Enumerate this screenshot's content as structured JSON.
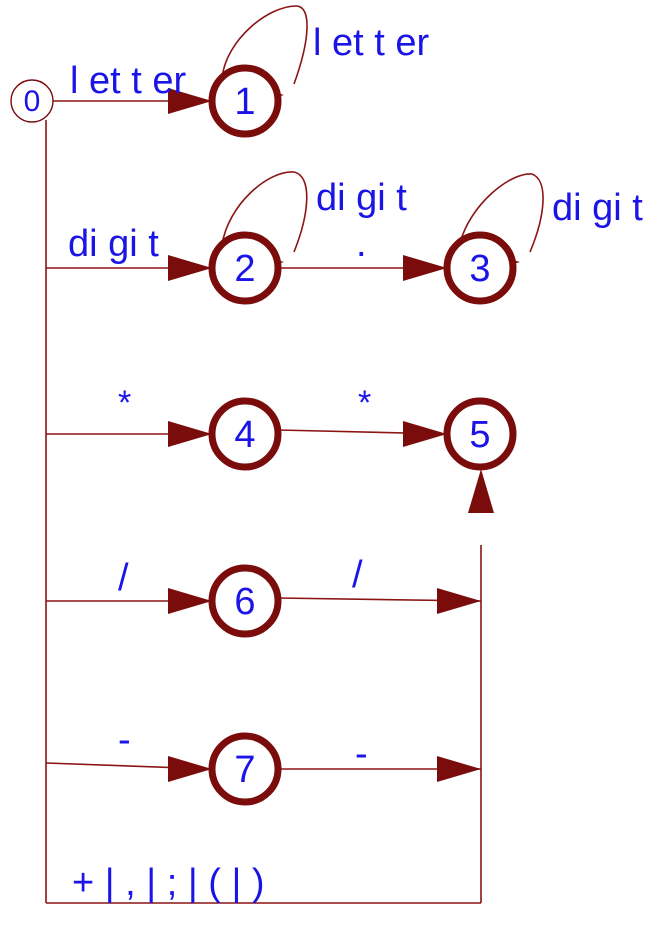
{
  "colors": {
    "edge": "#8b1414",
    "node": "#7a0c0c",
    "text": "#1a14e6"
  },
  "states": [
    {
      "id": "s0",
      "label": "0",
      "final": false
    },
    {
      "id": "s1",
      "label": "1",
      "final": true
    },
    {
      "id": "s2",
      "label": "2",
      "final": true
    },
    {
      "id": "s3",
      "label": "3",
      "final": true
    },
    {
      "id": "s4",
      "label": "4",
      "final": true
    },
    {
      "id": "s5",
      "label": "5",
      "final": true
    },
    {
      "id": "s6",
      "label": "6",
      "final": true
    },
    {
      "id": "s7",
      "label": "7",
      "final": true
    }
  ],
  "transitions": [
    {
      "from": "0",
      "to": "1",
      "label": "l et t er"
    },
    {
      "from": "1",
      "to": "1",
      "label": "l et t er"
    },
    {
      "from": "0",
      "to": "2",
      "label": "di gi t"
    },
    {
      "from": "2",
      "to": "2",
      "label": "di gi t"
    },
    {
      "from": "2",
      "to": "3",
      "label": "."
    },
    {
      "from": "3",
      "to": "3",
      "label": "di gi t"
    },
    {
      "from": "0",
      "to": "4",
      "label": "*"
    },
    {
      "from": "4",
      "to": "5",
      "label": "*"
    },
    {
      "from": "0",
      "to": "6",
      "label": "/"
    },
    {
      "from": "6",
      "to": "5",
      "label": "/"
    },
    {
      "from": "0",
      "to": "7",
      "label": "-"
    },
    {
      "from": "7",
      "to": "5",
      "label": "-"
    },
    {
      "from": "0",
      "to": "5",
      "label": "+ |   ,   |   ;   |   (   |   )"
    }
  ]
}
